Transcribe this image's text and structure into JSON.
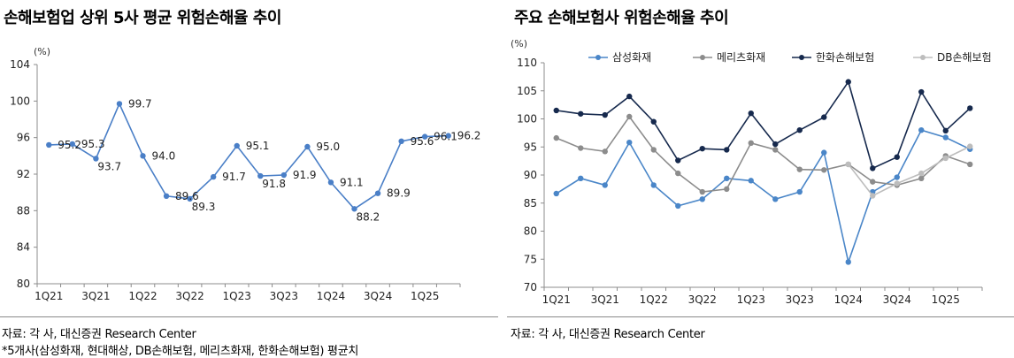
{
  "left": {
    "title": "손해보험업 상위 5사 평균 위험손해율 추이",
    "source": "자료: 각 사, 대신증권 Research Center",
    "footnote": "*5개사(삼성화재, 현대해상, DB손해보험, 메리츠화재, 한화손해보험) 평균치"
  },
  "right": {
    "title": "주요 손해보험사 위험손해율 추이",
    "source": "자료: 각 사, 대신증권 Research Center"
  },
  "chart_data": [
    {
      "type": "line",
      "unit": "(%)",
      "ylim": [
        80,
        104
      ],
      "yticks": [
        80,
        84,
        88,
        92,
        96,
        100,
        104
      ],
      "xticklabels": [
        "1Q21",
        "3Q21",
        "1Q22",
        "3Q22",
        "1Q23",
        "3Q23",
        "1Q24",
        "3Q24",
        "1Q25"
      ],
      "categories": [
        "1Q21",
        "2Q21",
        "3Q21",
        "4Q21",
        "1Q22",
        "2Q22",
        "3Q22",
        "4Q22",
        "1Q23",
        "2Q23",
        "3Q23",
        "4Q23",
        "1Q24",
        "2Q24",
        "3Q24",
        "4Q24",
        "1Q25",
        "2Q25"
      ],
      "series": [
        {
          "values": [
            95.2,
            95.3,
            93.7,
            99.7,
            94.0,
            89.6,
            89.3,
            91.7,
            95.1,
            91.8,
            91.9,
            95.0,
            91.1,
            88.2,
            89.9,
            95.6,
            96.1,
            96.2
          ],
          "labels": [
            "95.2",
            "95.3",
            "93.7",
            "99.7",
            "94.0",
            "89.6",
            "89.3",
            "91.7",
            "95.1",
            "91.8",
            "91.9",
            "95.0",
            "91.1",
            "88.2",
            "89.9",
            "95.6",
            "96.1",
            "96.2"
          ],
          "color": "#4a7fc7"
        }
      ],
      "grid": false
    },
    {
      "type": "line",
      "unit": "(%)",
      "ylim": [
        70,
        110
      ],
      "yticks": [
        70,
        75,
        80,
        85,
        90,
        95,
        100,
        105,
        110
      ],
      "xticklabels": [
        "1Q21",
        "3Q21",
        "1Q22",
        "3Q22",
        "1Q23",
        "3Q23",
        "1Q24",
        "3Q24",
        "1Q25"
      ],
      "categories": [
        "1Q21",
        "2Q21",
        "3Q21",
        "4Q21",
        "1Q22",
        "2Q22",
        "3Q22",
        "4Q22",
        "1Q23",
        "2Q23",
        "3Q23",
        "4Q23",
        "1Q24",
        "2Q24",
        "3Q24",
        "4Q24",
        "1Q25",
        "2Q25"
      ],
      "legend_position": "top",
      "series": [
        {
          "name": "삼성화재",
          "color": "#4a86c8",
          "values": [
            86.7,
            89.4,
            88.2,
            95.8,
            88.2,
            84.5,
            85.7,
            89.4,
            89.0,
            85.7,
            87.0,
            94.0,
            74.5,
            87.0,
            89.6,
            98.0,
            96.7,
            94.6
          ]
        },
        {
          "name": "메리츠화재",
          "color": "#8c8c8c",
          "values": [
            96.6,
            94.8,
            94.2,
            100.4,
            94.5,
            90.3,
            87.0,
            87.5,
            95.7,
            94.5,
            91.0,
            90.9,
            91.9,
            88.8,
            88.2,
            89.4,
            93.4,
            91.9
          ]
        },
        {
          "name": "한화손해보험",
          "color": "#16294d",
          "values": [
            101.5,
            100.9,
            100.7,
            104.0,
            99.5,
            92.6,
            94.7,
            94.5,
            101.0,
            95.5,
            98.0,
            100.3,
            106.6,
            91.2,
            93.2,
            104.8,
            97.9,
            101.9
          ]
        },
        {
          "name": "DB손해보험",
          "color": "#bdbdbd",
          "values": [
            null,
            null,
            null,
            null,
            null,
            null,
            null,
            null,
            null,
            null,
            null,
            null,
            91.9,
            86.3,
            88.5,
            90.3,
            93.0,
            95.1
          ]
        }
      ],
      "grid": false
    }
  ]
}
